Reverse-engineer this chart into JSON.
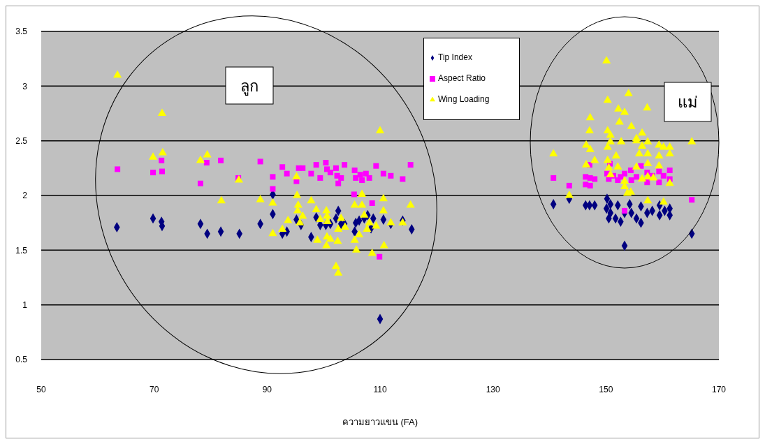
{
  "chart_data": {
    "type": "scatter",
    "xlabel": "ความยาวแขน (FA)",
    "xlim": [
      50,
      170
    ],
    "xticks": [
      50,
      70,
      90,
      110,
      130,
      150,
      170
    ],
    "ylim": [
      0.5,
      3.5
    ],
    "yticks": [
      0.5,
      1,
      1.5,
      2,
      2.5,
      3,
      3.5
    ],
    "grid": "y",
    "legend": "top",
    "annotations": [
      "ลูก",
      "แม่"
    ],
    "series": [
      {
        "name": "Tip Index",
        "color": "#000080",
        "marker": "diamond",
        "x": [
          63.4,
          69.8,
          71.3,
          71.4,
          78.2,
          79.4,
          81.8,
          85.1,
          88.8,
          91.0,
          91.0,
          92.7,
          93.5,
          95.2,
          96.0,
          97.8,
          98.7,
          99.4,
          100.4,
          101.2,
          102.2,
          102.6,
          103.1,
          103.7,
          105.5,
          105.7,
          106.3,
          107.2,
          107.8,
          108.4,
          108.8,
          110.6,
          111.9,
          114.0,
          115.6,
          110.0,
          140.7,
          143.5,
          146.4,
          147.1,
          148.0,
          150.2,
          150.1,
          150.5,
          150.8,
          152.1,
          152.6,
          153.3,
          154.2,
          154.5,
          155.4,
          156.2,
          156.2,
          157.3,
          158.2,
          159.5,
          159.5,
          160.4,
          161.3,
          161.3,
          153.3,
          165.2,
          151.7,
          150.8
        ],
        "values": [
          1.71,
          1.79,
          1.76,
          1.72,
          1.74,
          1.65,
          1.67,
          1.65,
          1.74,
          2.01,
          1.83,
          1.65,
          1.67,
          1.78,
          1.73,
          1.62,
          1.8,
          1.73,
          1.73,
          1.74,
          1.79,
          1.86,
          1.74,
          1.74,
          1.67,
          1.75,
          1.77,
          1.79,
          1.82,
          1.7,
          1.79,
          1.78,
          1.74,
          1.77,
          1.69,
          0.87,
          1.92,
          1.97,
          1.91,
          1.91,
          1.91,
          1.97,
          1.88,
          1.79,
          1.84,
          1.91,
          1.76,
          1.84,
          1.92,
          1.84,
          1.79,
          1.75,
          1.9,
          1.84,
          1.86,
          1.91,
          1.82,
          1.86,
          1.88,
          1.82,
          1.54,
          1.65,
          1.79,
          1.92
        ]
      },
      {
        "name": "Aspect Ratio",
        "color": "#ff00ff",
        "marker": "square",
        "x": [
          63.5,
          69.8,
          71.3,
          71.4,
          78.2,
          79.3,
          81.8,
          84.9,
          88.8,
          91.0,
          91.0,
          92.7,
          93.5,
          95.2,
          95.6,
          96.3,
          97.8,
          98.7,
          99.4,
          100.4,
          100.6,
          101.2,
          102.2,
          102.4,
          103.1,
          102.6,
          103.7,
          105.5,
          105.7,
          106.5,
          106.8,
          107.5,
          108.1,
          109.3,
          110.6,
          111.9,
          114.0,
          115.4,
          105.4,
          108.6,
          109.9,
          140.7,
          143.5,
          146.4,
          146.4,
          147.1,
          147.2,
          147.2,
          148.0,
          150.2,
          150.5,
          150.7,
          151.3,
          152.1,
          152.6,
          153.3,
          154.4,
          154.5,
          155.4,
          156.2,
          157.3,
          157.3,
          158.2,
          159.4,
          159.4,
          160.2,
          161.3,
          161.3,
          165.2,
          153.3
        ],
        "values": [
          2.24,
          2.21,
          2.32,
          2.22,
          2.11,
          2.3,
          2.32,
          2.16,
          2.31,
          2.17,
          2.06,
          2.26,
          2.2,
          2.13,
          2.25,
          2.25,
          2.2,
          2.28,
          2.16,
          2.3,
          2.24,
          2.21,
          2.25,
          2.18,
          2.16,
          2.11,
          2.28,
          2.23,
          2.16,
          2.19,
          2.14,
          2.2,
          2.16,
          2.27,
          2.2,
          2.18,
          2.15,
          2.28,
          2.01,
          1.93,
          1.44,
          2.16,
          2.09,
          2.17,
          2.1,
          2.28,
          2.16,
          2.09,
          2.15,
          2.2,
          2.15,
          2.29,
          2.18,
          2.14,
          2.17,
          2.2,
          2.23,
          2.14,
          2.17,
          2.27,
          2.21,
          2.12,
          2.18,
          2.22,
          2.12,
          2.18,
          2.23,
          2.15,
          1.96,
          1.86
        ]
      },
      {
        "name": "Wing Loading",
        "color": "#ffff00",
        "marker": "triangle",
        "x": [
          63.5,
          71.4,
          69.8,
          71.5,
          78.2,
          79.4,
          81.9,
          85.0,
          88.8,
          91.0,
          91.0,
          92.7,
          93.7,
          95.2,
          95.3,
          95.5,
          95.4,
          96.3,
          95.8,
          97.8,
          98.7,
          98.9,
          99.4,
          100.5,
          100.6,
          100.7,
          100.6,
          100.5,
          101.2,
          102.2,
          102.6,
          102.5,
          102.6,
          103.1,
          103.8,
          105.5,
          105.5,
          105.8,
          106.3,
          106.8,
          106.8,
          107.2,
          107.7,
          108.1,
          108.6,
          109.3,
          110.0,
          110.6,
          110.6,
          110.7,
          111.9,
          114.0,
          115.4,
          150.1,
          154.0,
          150.3,
          157.3,
          152.2,
          153.3,
          147.2,
          152.4,
          154.5,
          147.1,
          150.3,
          150.8,
          156.4,
          155.4,
          146.5,
          147.2,
          150.3,
          150.8,
          152.7,
          155.4,
          156.4,
          157.4,
          159.4,
          160.2,
          161.3,
          165.2,
          140.7,
          148.0,
          150.3,
          151.8,
          155.9,
          157.4,
          159.4,
          161.3,
          146.5,
          150.5,
          152.1,
          155.4,
          157.4,
          159.4,
          150.8,
          156.4,
          157.4,
          158.4,
          153.3,
          153.3,
          153.8,
          154.4,
          161.3,
          143.5,
          157.4,
          160.2
        ],
        "values": [
          3.1,
          2.75,
          2.35,
          2.39,
          2.32,
          2.37,
          1.95,
          2.14,
          1.96,
          1.93,
          1.65,
          1.69,
          1.77,
          2.17,
          2.0,
          1.91,
          1.86,
          1.81,
          1.75,
          1.95,
          1.87,
          1.59,
          1.78,
          1.86,
          1.81,
          1.76,
          1.62,
          1.54,
          1.6,
          1.35,
          1.29,
          1.58,
          1.69,
          1.79,
          1.71,
          1.91,
          1.59,
          1.5,
          1.64,
          2.01,
          1.91,
          1.82,
          1.69,
          1.75,
          1.47,
          1.72,
          2.59,
          1.97,
          1.86,
          1.54,
          1.75,
          1.75,
          1.91,
          3.23,
          2.93,
          2.87,
          2.8,
          2.79,
          2.76,
          2.71,
          2.67,
          2.63,
          2.59,
          2.59,
          2.55,
          2.57,
          2.52,
          2.46,
          2.42,
          2.44,
          2.49,
          2.49,
          2.5,
          2.45,
          2.49,
          2.46,
          2.44,
          2.44,
          2.49,
          2.38,
          2.32,
          2.32,
          2.36,
          2.38,
          2.38,
          2.36,
          2.38,
          2.28,
          2.25,
          2.26,
          2.26,
          2.29,
          2.27,
          2.19,
          2.15,
          2.17,
          2.16,
          2.13,
          2.08,
          2.02,
          2.03,
          2.11,
          2.0,
          1.95,
          1.94
        ]
      }
    ]
  }
}
